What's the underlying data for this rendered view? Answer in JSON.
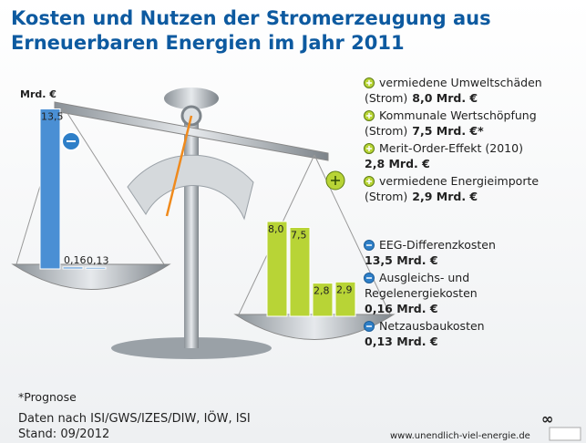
{
  "chart_data": {
    "type": "balance",
    "title": [
      "Kosten und Nutzen der Stromerzeugung aus",
      "Erneuerbaren Energien im Jahr 2011"
    ],
    "unit": "Mrd. €",
    "series": [
      {
        "color": "#4a8fd4",
        "values": [
          13.5,
          0.16,
          0.13
        ],
        "value_labels": [
          "13,5",
          "0,16",
          "0,13"
        ]
      },
      {
        "color": "#b8d436",
        "values": [
          8.0,
          7.5,
          2.8,
          2.9
        ],
        "value_labels": [
          "8,0",
          "7,5",
          "2,8",
          "2,9"
        ]
      }
    ],
    "benefits": [
      {
        "lines": [
          "vermiedene Umweltschäden"
        ],
        "note": "(Strom)",
        "amount": "8,0 Mrd. €"
      },
      {
        "lines": [
          "Kommunale Wertschöpfung"
        ],
        "note": "(Strom)",
        "amount": "7,5 Mrd. €*"
      },
      {
        "lines": [
          "Merit-Order-Effekt (2010)"
        ],
        "amount": "2,8 Mrd. €"
      },
      {
        "lines": [
          "vermiedene Energieimporte"
        ],
        "note": "(Strom)",
        "amount": "2,9 Mrd. €"
      }
    ],
    "costs": [
      {
        "lines": [
          "EEG-Differenzkosten"
        ],
        "amount": "13,5 Mrd. €"
      },
      {
        "lines": [
          "Ausgleichs- und",
          "Regelenergiekosten"
        ],
        "amount": "0,16 Mrd. €"
      },
      {
        "lines": [
          "Netzausbaukosten"
        ],
        "amount": "0,13 Mrd. €"
      }
    ],
    "footnote": "*Prognose",
    "source": "Daten nach ISI/GWS/IZES/DIW, IÖW, ISI",
    "date": "Stand: 09/2012",
    "url": "www.unendlich-viel-energie.de"
  }
}
